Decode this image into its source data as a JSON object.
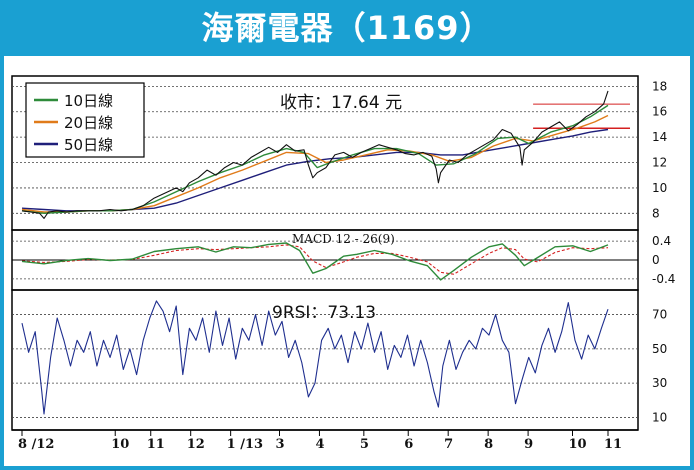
{
  "header": {
    "title": "海爾電器（1169）"
  },
  "chart_data": [
    {
      "type": "line",
      "panel": "price",
      "annotation": "收市：17.64 元",
      "yticks": [
        8,
        10,
        12,
        14,
        16,
        18
      ],
      "ylim": [
        7,
        18.5
      ],
      "legend": [
        "10日線",
        "20日線",
        "50日線"
      ],
      "legend_position": "top-left",
      "colors": {
        "price": "#111111",
        "ma10": "#2e8b3a",
        "ma20": "#e07b1a",
        "ma50": "#1f1f7a",
        "ref_line": "#d42020"
      },
      "x_labels": [
        "8 /12",
        "10",
        "11",
        "12",
        "1 /13",
        "3",
        "4",
        "5",
        "6",
        "7",
        "8",
        "9",
        "10",
        "11"
      ],
      "close_points": [
        [
          0,
          8.2
        ],
        [
          4,
          8.1
        ],
        [
          8,
          8.0
        ],
        [
          10,
          7.6
        ],
        [
          12,
          8.1
        ],
        [
          16,
          8.2
        ],
        [
          20,
          8.1
        ],
        [
          25,
          8.2
        ],
        [
          30,
          8.2
        ],
        [
          35,
          8.2
        ],
        [
          40,
          8.3
        ],
        [
          45,
          8.2
        ],
        [
          50,
          8.3
        ],
        [
          55,
          8.6
        ],
        [
          60,
          9.2
        ],
        [
          65,
          9.6
        ],
        [
          70,
          10.0
        ],
        [
          73,
          9.7
        ],
        [
          76,
          10.4
        ],
        [
          80,
          10.8
        ],
        [
          84,
          11.4
        ],
        [
          88,
          11.0
        ],
        [
          92,
          11.6
        ],
        [
          96,
          12.0
        ],
        [
          100,
          11.8
        ],
        [
          104,
          12.4
        ],
        [
          108,
          12.8
        ],
        [
          112,
          13.2
        ],
        [
          116,
          12.8
        ],
        [
          120,
          13.4
        ],
        [
          124,
          12.9
        ],
        [
          128,
          13.0
        ],
        [
          130,
          11.8
        ],
        [
          132,
          10.8
        ],
        [
          134,
          11.2
        ],
        [
          138,
          11.6
        ],
        [
          142,
          12.6
        ],
        [
          146,
          12.8
        ],
        [
          150,
          12.4
        ],
        [
          154,
          12.8
        ],
        [
          158,
          13.1
        ],
        [
          162,
          13.4
        ],
        [
          166,
          13.2
        ],
        [
          170,
          13.0
        ],
        [
          174,
          12.7
        ],
        [
          178,
          12.6
        ],
        [
          182,
          12.8
        ],
        [
          186,
          12.5
        ],
        [
          188,
          11.5
        ],
        [
          189,
          10.4
        ],
        [
          190,
          11.2
        ],
        [
          194,
          12.2
        ],
        [
          198,
          12.0
        ],
        [
          202,
          12.6
        ],
        [
          206,
          13.0
        ],
        [
          210,
          13.4
        ],
        [
          214,
          13.8
        ],
        [
          218,
          14.6
        ],
        [
          222,
          14.3
        ],
        [
          226,
          13.2
        ],
        [
          227,
          11.8
        ],
        [
          228,
          13.0
        ],
        [
          232,
          13.6
        ],
        [
          236,
          14.4
        ],
        [
          240,
          14.8
        ],
        [
          244,
          15.2
        ],
        [
          248,
          14.5
        ],
        [
          252,
          15.0
        ],
        [
          256,
          15.6
        ],
        [
          260,
          16.0
        ],
        [
          264,
          16.6
        ],
        [
          266,
          17.64
        ]
      ],
      "ma10_points": [
        [
          0,
          8.2
        ],
        [
          10,
          8.0
        ],
        [
          20,
          8.1
        ],
        [
          30,
          8.2
        ],
        [
          40,
          8.2
        ],
        [
          50,
          8.3
        ],
        [
          60,
          8.9
        ],
        [
          70,
          9.7
        ],
        [
          80,
          10.5
        ],
        [
          90,
          11.2
        ],
        [
          100,
          11.8
        ],
        [
          110,
          12.6
        ],
        [
          120,
          13.1
        ],
        [
          128,
          12.8
        ],
        [
          134,
          11.6
        ],
        [
          140,
          12.0
        ],
        [
          150,
          12.6
        ],
        [
          160,
          13.1
        ],
        [
          170,
          13.1
        ],
        [
          180,
          12.7
        ],
        [
          188,
          11.8
        ],
        [
          196,
          11.9
        ],
        [
          206,
          12.7
        ],
        [
          216,
          13.9
        ],
        [
          224,
          14.0
        ],
        [
          230,
          13.5
        ],
        [
          240,
          14.4
        ],
        [
          250,
          14.9
        ],
        [
          258,
          15.6
        ],
        [
          266,
          16.5
        ]
      ],
      "ma20_points": [
        [
          0,
          8.3
        ],
        [
          10,
          8.1
        ],
        [
          20,
          8.1
        ],
        [
          30,
          8.2
        ],
        [
          40,
          8.2
        ],
        [
          50,
          8.3
        ],
        [
          60,
          8.6
        ],
        [
          70,
          9.3
        ],
        [
          80,
          10.0
        ],
        [
          90,
          10.8
        ],
        [
          100,
          11.4
        ],
        [
          110,
          12.1
        ],
        [
          120,
          12.8
        ],
        [
          130,
          12.7
        ],
        [
          138,
          12.0
        ],
        [
          146,
          12.2
        ],
        [
          156,
          12.6
        ],
        [
          166,
          13.0
        ],
        [
          176,
          12.9
        ],
        [
          186,
          12.6
        ],
        [
          194,
          12.1
        ],
        [
          204,
          12.4
        ],
        [
          214,
          13.3
        ],
        [
          224,
          13.9
        ],
        [
          232,
          13.7
        ],
        [
          242,
          14.2
        ],
        [
          252,
          14.7
        ],
        [
          260,
          15.2
        ],
        [
          266,
          15.7
        ]
      ],
      "ma50_points": [
        [
          0,
          8.4
        ],
        [
          10,
          8.3
        ],
        [
          20,
          8.2
        ],
        [
          30,
          8.2
        ],
        [
          40,
          8.2
        ],
        [
          50,
          8.3
        ],
        [
          60,
          8.4
        ],
        [
          70,
          8.8
        ],
        [
          80,
          9.4
        ],
        [
          90,
          10.0
        ],
        [
          100,
          10.6
        ],
        [
          110,
          11.2
        ],
        [
          120,
          11.8
        ],
        [
          130,
          12.1
        ],
        [
          140,
          12.3
        ],
        [
          150,
          12.4
        ],
        [
          160,
          12.6
        ],
        [
          170,
          12.8
        ],
        [
          180,
          12.8
        ],
        [
          190,
          12.6
        ],
        [
          200,
          12.6
        ],
        [
          210,
          12.9
        ],
        [
          220,
          13.2
        ],
        [
          230,
          13.5
        ],
        [
          240,
          13.8
        ],
        [
          250,
          14.1
        ],
        [
          258,
          14.4
        ],
        [
          266,
          14.6
        ]
      ],
      "ref_lines": [
        16.6,
        14.7
      ]
    },
    {
      "type": "line",
      "panel": "macd",
      "label": "MACD 12 - 26(9)",
      "yticks": [
        0.4,
        0,
        -0.4
      ],
      "ylim": [
        -0.55,
        0.55
      ],
      "macd_points": [
        [
          0,
          -0.03
        ],
        [
          10,
          -0.08
        ],
        [
          20,
          -0.01
        ],
        [
          30,
          0.03
        ],
        [
          40,
          -0.01
        ],
        [
          50,
          0.02
        ],
        [
          60,
          0.18
        ],
        [
          70,
          0.24
        ],
        [
          80,
          0.28
        ],
        [
          88,
          0.17
        ],
        [
          96,
          0.28
        ],
        [
          104,
          0.26
        ],
        [
          112,
          0.33
        ],
        [
          120,
          0.36
        ],
        [
          126,
          0.2
        ],
        [
          132,
          -0.28
        ],
        [
          138,
          -0.18
        ],
        [
          146,
          0.08
        ],
        [
          152,
          0.12
        ],
        [
          160,
          0.2
        ],
        [
          168,
          0.12
        ],
        [
          176,
          -0.02
        ],
        [
          184,
          -0.12
        ],
        [
          190,
          -0.42
        ],
        [
          196,
          -0.22
        ],
        [
          204,
          0.06
        ],
        [
          212,
          0.28
        ],
        [
          218,
          0.34
        ],
        [
          224,
          0.1
        ],
        [
          228,
          -0.12
        ],
        [
          234,
          0.05
        ],
        [
          242,
          0.28
        ],
        [
          250,
          0.3
        ],
        [
          258,
          0.18
        ],
        [
          266,
          0.32
        ]
      ],
      "signal_points": [
        [
          0,
          -0.02
        ],
        [
          10,
          -0.05
        ],
        [
          20,
          -0.03
        ],
        [
          30,
          0.01
        ],
        [
          40,
          0.0
        ],
        [
          50,
          0.01
        ],
        [
          60,
          0.1
        ],
        [
          70,
          0.2
        ],
        [
          80,
          0.24
        ],
        [
          88,
          0.22
        ],
        [
          96,
          0.24
        ],
        [
          104,
          0.26
        ],
        [
          112,
          0.28
        ],
        [
          120,
          0.32
        ],
        [
          126,
          0.28
        ],
        [
          132,
          -0.02
        ],
        [
          138,
          -0.16
        ],
        [
          146,
          -0.04
        ],
        [
          152,
          0.06
        ],
        [
          160,
          0.14
        ],
        [
          168,
          0.14
        ],
        [
          176,
          0.06
        ],
        [
          184,
          -0.04
        ],
        [
          190,
          -0.26
        ],
        [
          196,
          -0.3
        ],
        [
          204,
          -0.08
        ],
        [
          212,
          0.14
        ],
        [
          218,
          0.26
        ],
        [
          224,
          0.22
        ],
        [
          228,
          0.02
        ],
        [
          234,
          -0.04
        ],
        [
          242,
          0.16
        ],
        [
          250,
          0.26
        ],
        [
          258,
          0.24
        ],
        [
          266,
          0.26
        ]
      ],
      "colors": {
        "macd": "#2e8b3a",
        "signal": "#d42020"
      }
    },
    {
      "type": "line",
      "panel": "rsi",
      "annotation": "9RSI：73.13",
      "yticks": [
        10,
        30,
        50,
        70
      ],
      "ylim": [
        5,
        82
      ],
      "rsi_points": [
        [
          0,
          65
        ],
        [
          3,
          48
        ],
        [
          6,
          60
        ],
        [
          9,
          25
        ],
        [
          10,
          12
        ],
        [
          13,
          45
        ],
        [
          16,
          68
        ],
        [
          19,
          55
        ],
        [
          22,
          40
        ],
        [
          25,
          55
        ],
        [
          28,
          48
        ],
        [
          31,
          60
        ],
        [
          34,
          40
        ],
        [
          37,
          55
        ],
        [
          40,
          45
        ],
        [
          43,
          58
        ],
        [
          46,
          38
        ],
        [
          49,
          50
        ],
        [
          52,
          35
        ],
        [
          55,
          55
        ],
        [
          58,
          68
        ],
        [
          61,
          78
        ],
        [
          64,
          72
        ],
        [
          67,
          60
        ],
        [
          70,
          75
        ],
        [
          73,
          35
        ],
        [
          76,
          62
        ],
        [
          79,
          55
        ],
        [
          82,
          68
        ],
        [
          85,
          48
        ],
        [
          88,
          72
        ],
        [
          91,
          52
        ],
        [
          94,
          68
        ],
        [
          97,
          44
        ],
        [
          100,
          62
        ],
        [
          103,
          55
        ],
        [
          106,
          70
        ],
        [
          109,
          52
        ],
        [
          112,
          72
        ],
        [
          115,
          58
        ],
        [
          118,
          66
        ],
        [
          121,
          45
        ],
        [
          124,
          55
        ],
        [
          127,
          42
        ],
        [
          130,
          22
        ],
        [
          133,
          30
        ],
        [
          136,
          55
        ],
        [
          139,
          62
        ],
        [
          142,
          50
        ],
        [
          145,
          58
        ],
        [
          148,
          42
        ],
        [
          151,
          60
        ],
        [
          154,
          50
        ],
        [
          157,
          65
        ],
        [
          160,
          48
        ],
        [
          163,
          60
        ],
        [
          166,
          38
        ],
        [
          169,
          52
        ],
        [
          172,
          45
        ],
        [
          175,
          58
        ],
        [
          178,
          40
        ],
        [
          181,
          55
        ],
        [
          184,
          42
        ],
        [
          187,
          25
        ],
        [
          189,
          16
        ],
        [
          191,
          40
        ],
        [
          194,
          55
        ],
        [
          197,
          38
        ],
        [
          200,
          48
        ],
        [
          203,
          55
        ],
        [
          206,
          50
        ],
        [
          209,
          62
        ],
        [
          212,
          58
        ],
        [
          215,
          70
        ],
        [
          218,
          55
        ],
        [
          221,
          48
        ],
        [
          224,
          18
        ],
        [
          227,
          32
        ],
        [
          230,
          45
        ],
        [
          233,
          36
        ],
        [
          236,
          52
        ],
        [
          239,
          62
        ],
        [
          242,
          48
        ],
        [
          245,
          60
        ],
        [
          248,
          77
        ],
        [
          251,
          55
        ],
        [
          254,
          44
        ],
        [
          257,
          58
        ],
        [
          260,
          50
        ],
        [
          263,
          62
        ],
        [
          266,
          73.13
        ]
      ],
      "colors": {
        "rsi": "#1f2f8f"
      }
    }
  ]
}
